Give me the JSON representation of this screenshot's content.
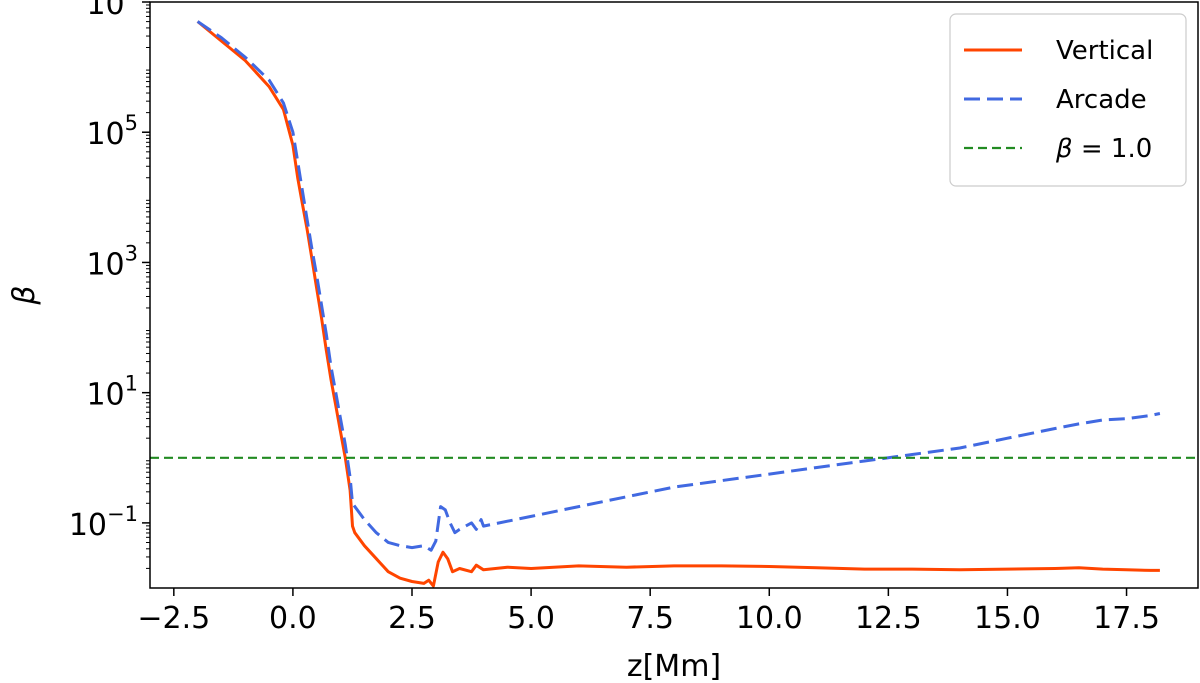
{
  "chart_data": {
    "type": "line",
    "title": "",
    "xlabel": "z[Mm]",
    "ylabel": "β",
    "xlim": [
      -3.0,
      19.0
    ],
    "ylim_log10": [
      -2.0,
      7.0
    ],
    "yscale": "log",
    "xticks": [
      -2.5,
      0.0,
      2.5,
      5.0,
      7.5,
      10.0,
      12.5,
      15.0,
      17.5
    ],
    "xtick_labels": [
      "−2.5",
      "0.0",
      "2.5",
      "5.0",
      "7.5",
      "10.0",
      "12.5",
      "15.0",
      "17.5"
    ],
    "yticks_log10": [
      -1,
      1,
      3,
      5,
      7
    ],
    "ytick_labels": [
      "10",
      "10",
      "10",
      "10",
      "10"
    ],
    "ytick_exponents": [
      "−1",
      "1",
      "3",
      "5",
      "7"
    ],
    "grid": false,
    "legend_position": "top-right",
    "series": [
      {
        "name": "Vertical",
        "color": "#ff4500",
        "style": "solid",
        "x": [
          -2.0,
          -1.5,
          -1.0,
          -0.5,
          -0.2,
          0.0,
          0.1,
          0.2,
          0.3,
          0.4,
          0.5,
          0.6,
          0.7,
          0.8,
          0.9,
          1.0,
          1.1,
          1.2,
          1.25,
          1.3,
          1.5,
          1.75,
          2.0,
          2.25,
          2.5,
          2.75,
          2.85,
          2.95,
          3.05,
          3.15,
          3.25,
          3.35,
          3.5,
          3.75,
          3.85,
          4.0,
          4.5,
          5.0,
          6.0,
          7.0,
          8.0,
          9.0,
          10.0,
          11.0,
          12.0,
          13.0,
          14.0,
          15.0,
          16.0,
          16.5,
          17.0,
          17.5,
          18.0,
          18.2
        ],
        "y_log10": [
          6.7,
          6.4,
          6.1,
          5.7,
          5.35,
          4.8,
          4.3,
          3.9,
          3.5,
          3.05,
          2.6,
          2.15,
          1.65,
          1.2,
          0.8,
          0.4,
          0.0,
          -0.5,
          -1.05,
          -1.15,
          -1.35,
          -1.55,
          -1.75,
          -1.85,
          -1.9,
          -1.93,
          -1.88,
          -1.97,
          -1.6,
          -1.45,
          -1.55,
          -1.75,
          -1.7,
          -1.75,
          -1.65,
          -1.72,
          -1.68,
          -1.7,
          -1.66,
          -1.68,
          -1.66,
          -1.66,
          -1.67,
          -1.69,
          -1.71,
          -1.71,
          -1.72,
          -1.71,
          -1.7,
          -1.69,
          -1.71,
          -1.72,
          -1.73,
          -1.73
        ]
      },
      {
        "name": "Arcade",
        "color": "#4169e1",
        "style": "dashed",
        "x": [
          -2.0,
          -1.5,
          -1.0,
          -0.5,
          -0.2,
          0.0,
          0.1,
          0.2,
          0.3,
          0.4,
          0.5,
          0.6,
          0.7,
          0.8,
          0.9,
          1.0,
          1.1,
          1.2,
          1.25,
          1.5,
          1.75,
          2.0,
          2.25,
          2.5,
          2.75,
          2.9,
          3.0,
          3.1,
          3.2,
          3.3,
          3.4,
          3.5,
          3.75,
          3.85,
          3.95,
          4.0,
          5.0,
          6.0,
          7.0,
          8.0,
          9.0,
          10.0,
          11.0,
          12.0,
          13.0,
          14.0,
          15.0,
          16.0,
          16.5,
          17.0,
          17.5,
          18.0,
          18.2
        ],
        "y_log10": [
          6.7,
          6.45,
          6.15,
          5.8,
          5.45,
          5.0,
          4.55,
          4.1,
          3.65,
          3.2,
          2.8,
          2.35,
          1.9,
          1.4,
          1.0,
          0.6,
          0.2,
          -0.3,
          -0.7,
          -0.95,
          -1.15,
          -1.3,
          -1.35,
          -1.38,
          -1.35,
          -1.42,
          -1.28,
          -0.75,
          -0.8,
          -1.0,
          -1.15,
          -1.1,
          -1.0,
          -1.1,
          -0.95,
          -1.05,
          -0.9,
          -0.75,
          -0.6,
          -0.45,
          -0.35,
          -0.25,
          -0.15,
          -0.05,
          0.05,
          0.15,
          0.3,
          0.45,
          0.52,
          0.58,
          0.6,
          0.65,
          0.68
        ]
      },
      {
        "name": "β = 1.0",
        "color": "#228b22",
        "style": "dashed",
        "x": [
          -3.0,
          19.0
        ],
        "y_log10": [
          0.0,
          0.0
        ]
      }
    ]
  }
}
